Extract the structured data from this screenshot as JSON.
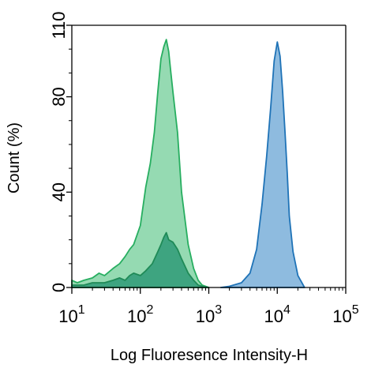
{
  "chart_data": {
    "type": "area",
    "xlabel": "Log Fluoresence Intensity-H",
    "ylabel": "Count  (%)",
    "xscale": "log",
    "xlim": [
      10,
      100000
    ],
    "ylim": [
      0,
      110
    ],
    "xticks": [
      {
        "base": "10",
        "exp": "1",
        "value": 10
      },
      {
        "base": "10",
        "exp": "2",
        "value": 100
      },
      {
        "base": "10",
        "exp": "3",
        "value": 1000
      },
      {
        "base": "10",
        "exp": "4",
        "value": 10000
      },
      {
        "base": "10",
        "exp": "5",
        "value": 100000
      }
    ],
    "yticks": [
      "0",
      "40",
      "80",
      "110"
    ],
    "grid": false,
    "legend": "none",
    "series": [
      {
        "fill": "#83d3a5",
        "stroke": "#27ae60",
        "x": [
          10,
          12,
          15,
          20,
          25,
          30,
          40,
          50,
          60,
          70,
          80,
          100,
          120,
          140,
          160,
          180,
          200,
          220,
          240,
          260,
          280,
          300,
          350,
          400,
          500,
          600,
          700,
          800,
          1000
        ],
        "y": [
          3,
          2,
          3,
          4,
          6,
          5,
          8,
          10,
          13,
          16,
          18,
          26,
          42,
          52,
          65,
          82,
          96,
          101,
          104,
          99,
          90,
          82,
          65,
          40,
          18,
          8,
          3,
          1,
          0
        ]
      },
      {
        "fill": "#2f9a77",
        "stroke": "#1f8a57",
        "x": [
          10,
          15,
          20,
          30,
          40,
          50,
          60,
          70,
          80,
          100,
          120,
          150,
          180,
          200,
          220,
          240,
          260,
          300,
          350,
          400,
          500,
          600,
          700,
          800,
          1000
        ],
        "y": [
          1,
          1,
          2,
          2,
          3,
          4,
          3,
          5,
          6,
          5,
          7,
          10,
          15,
          18,
          21,
          23,
          20,
          19,
          16,
          12,
          6,
          3,
          1,
          0.5,
          0
        ]
      },
      {
        "fill": "#7aafd9",
        "stroke": "#1f73b7",
        "x": [
          1500,
          2000,
          3000,
          4000,
          5000,
          6000,
          7000,
          8000,
          9000,
          10000,
          11000,
          12000,
          13000,
          14000,
          15000,
          17000,
          20000,
          25000
        ],
        "y": [
          0,
          0.5,
          2,
          6,
          16,
          35,
          55,
          75,
          95,
          103,
          97,
          82,
          65,
          48,
          30,
          15,
          5,
          0
        ]
      }
    ]
  }
}
